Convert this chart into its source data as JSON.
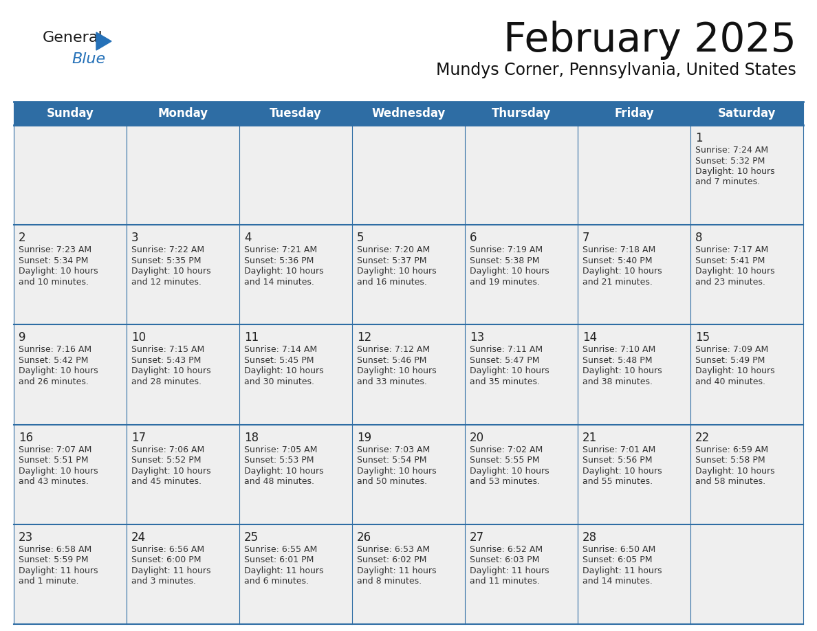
{
  "title": "February 2025",
  "subtitle": "Mundys Corner, Pennsylvania, United States",
  "header_bg": "#2E6DA4",
  "header_text_color": "#FFFFFF",
  "cell_bg_light": "#EFEFEF",
  "day_headers": [
    "Sunday",
    "Monday",
    "Tuesday",
    "Wednesday",
    "Thursday",
    "Friday",
    "Saturday"
  ],
  "calendar_data": [
    [
      null,
      null,
      null,
      null,
      null,
      null,
      {
        "day": "1",
        "sunrise": "7:24 AM",
        "sunset": "5:32 PM",
        "daylight": "10 hours",
        "daylight2": "and 7 minutes."
      }
    ],
    [
      {
        "day": "2",
        "sunrise": "7:23 AM",
        "sunset": "5:34 PM",
        "daylight": "10 hours",
        "daylight2": "and 10 minutes."
      },
      {
        "day": "3",
        "sunrise": "7:22 AM",
        "sunset": "5:35 PM",
        "daylight": "10 hours",
        "daylight2": "and 12 minutes."
      },
      {
        "day": "4",
        "sunrise": "7:21 AM",
        "sunset": "5:36 PM",
        "daylight": "10 hours",
        "daylight2": "and 14 minutes."
      },
      {
        "day": "5",
        "sunrise": "7:20 AM",
        "sunset": "5:37 PM",
        "daylight": "10 hours",
        "daylight2": "and 16 minutes."
      },
      {
        "day": "6",
        "sunrise": "7:19 AM",
        "sunset": "5:38 PM",
        "daylight": "10 hours",
        "daylight2": "and 19 minutes."
      },
      {
        "day": "7",
        "sunrise": "7:18 AM",
        "sunset": "5:40 PM",
        "daylight": "10 hours",
        "daylight2": "and 21 minutes."
      },
      {
        "day": "8",
        "sunrise": "7:17 AM",
        "sunset": "5:41 PM",
        "daylight": "10 hours",
        "daylight2": "and 23 minutes."
      }
    ],
    [
      {
        "day": "9",
        "sunrise": "7:16 AM",
        "sunset": "5:42 PM",
        "daylight": "10 hours",
        "daylight2": "and 26 minutes."
      },
      {
        "day": "10",
        "sunrise": "7:15 AM",
        "sunset": "5:43 PM",
        "daylight": "10 hours",
        "daylight2": "and 28 minutes."
      },
      {
        "day": "11",
        "sunrise": "7:14 AM",
        "sunset": "5:45 PM",
        "daylight": "10 hours",
        "daylight2": "and 30 minutes."
      },
      {
        "day": "12",
        "sunrise": "7:12 AM",
        "sunset": "5:46 PM",
        "daylight": "10 hours",
        "daylight2": "and 33 minutes."
      },
      {
        "day": "13",
        "sunrise": "7:11 AM",
        "sunset": "5:47 PM",
        "daylight": "10 hours",
        "daylight2": "and 35 minutes."
      },
      {
        "day": "14",
        "sunrise": "7:10 AM",
        "sunset": "5:48 PM",
        "daylight": "10 hours",
        "daylight2": "and 38 minutes."
      },
      {
        "day": "15",
        "sunrise": "7:09 AM",
        "sunset": "5:49 PM",
        "daylight": "10 hours",
        "daylight2": "and 40 minutes."
      }
    ],
    [
      {
        "day": "16",
        "sunrise": "7:07 AM",
        "sunset": "5:51 PM",
        "daylight": "10 hours",
        "daylight2": "and 43 minutes."
      },
      {
        "day": "17",
        "sunrise": "7:06 AM",
        "sunset": "5:52 PM",
        "daylight": "10 hours",
        "daylight2": "and 45 minutes."
      },
      {
        "day": "18",
        "sunrise": "7:05 AM",
        "sunset": "5:53 PM",
        "daylight": "10 hours",
        "daylight2": "and 48 minutes."
      },
      {
        "day": "19",
        "sunrise": "7:03 AM",
        "sunset": "5:54 PM",
        "daylight": "10 hours",
        "daylight2": "and 50 minutes."
      },
      {
        "day": "20",
        "sunrise": "7:02 AM",
        "sunset": "5:55 PM",
        "daylight": "10 hours",
        "daylight2": "and 53 minutes."
      },
      {
        "day": "21",
        "sunrise": "7:01 AM",
        "sunset": "5:56 PM",
        "daylight": "10 hours",
        "daylight2": "and 55 minutes."
      },
      {
        "day": "22",
        "sunrise": "6:59 AM",
        "sunset": "5:58 PM",
        "daylight": "10 hours",
        "daylight2": "and 58 minutes."
      }
    ],
    [
      {
        "day": "23",
        "sunrise": "6:58 AM",
        "sunset": "5:59 PM",
        "daylight": "11 hours",
        "daylight2": "and 1 minute."
      },
      {
        "day": "24",
        "sunrise": "6:56 AM",
        "sunset": "6:00 PM",
        "daylight": "11 hours",
        "daylight2": "and 3 minutes."
      },
      {
        "day": "25",
        "sunrise": "6:55 AM",
        "sunset": "6:01 PM",
        "daylight": "11 hours",
        "daylight2": "and 6 minutes."
      },
      {
        "day": "26",
        "sunrise": "6:53 AM",
        "sunset": "6:02 PM",
        "daylight": "11 hours",
        "daylight2": "and 8 minutes."
      },
      {
        "day": "27",
        "sunrise": "6:52 AM",
        "sunset": "6:03 PM",
        "daylight": "11 hours",
        "daylight2": "and 11 minutes."
      },
      {
        "day": "28",
        "sunrise": "6:50 AM",
        "sunset": "6:05 PM",
        "daylight": "11 hours",
        "daylight2": "and 14 minutes."
      },
      null
    ]
  ],
  "logo_color_general": "#1a1a1a",
  "logo_color_blue": "#2571B8"
}
